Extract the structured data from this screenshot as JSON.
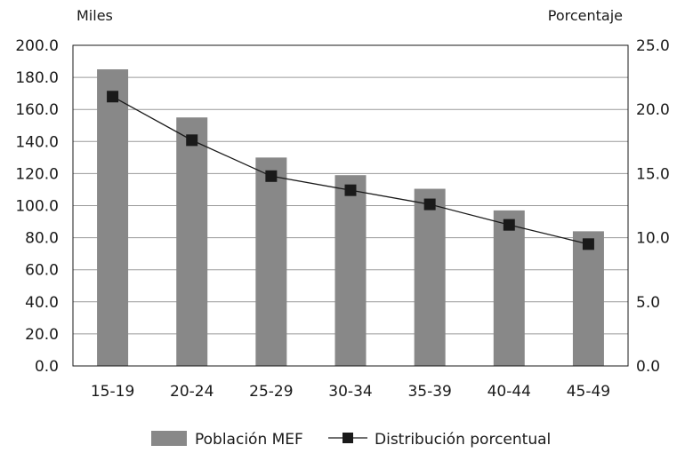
{
  "chart_data": {
    "type": "bar",
    "categories": [
      "15-19",
      "20-24",
      "25-29",
      "30-34",
      "35-39",
      "40-44",
      "45-49"
    ],
    "series": [
      {
        "name": "Población MEF",
        "type": "bar",
        "axis": "left",
        "color": "#888888",
        "values": [
          185.0,
          155.0,
          130.0,
          119.0,
          110.5,
          97.0,
          84.0
        ]
      },
      {
        "name": "Distribución porcentual",
        "type": "line",
        "axis": "right",
        "color": "#1a1a1a",
        "values": [
          21.0,
          17.6,
          14.8,
          13.7,
          12.6,
          11.0,
          9.5
        ]
      }
    ],
    "y_left": {
      "unit_label": "Miles",
      "range": [
        0,
        200
      ],
      "ticks": [
        "0.0",
        "20.0",
        "40.0",
        "60.0",
        "80.0",
        "100.0",
        "120.0",
        "140.0",
        "160.0",
        "180.0",
        "200.0"
      ]
    },
    "y_right": {
      "unit_label": "Porcentaje",
      "range": [
        0,
        25
      ],
      "ticks": [
        "0.0",
        "5.0",
        "10.0",
        "15.0",
        "20.0",
        "25.0"
      ]
    },
    "grid": true,
    "legend_position": "bottom"
  }
}
